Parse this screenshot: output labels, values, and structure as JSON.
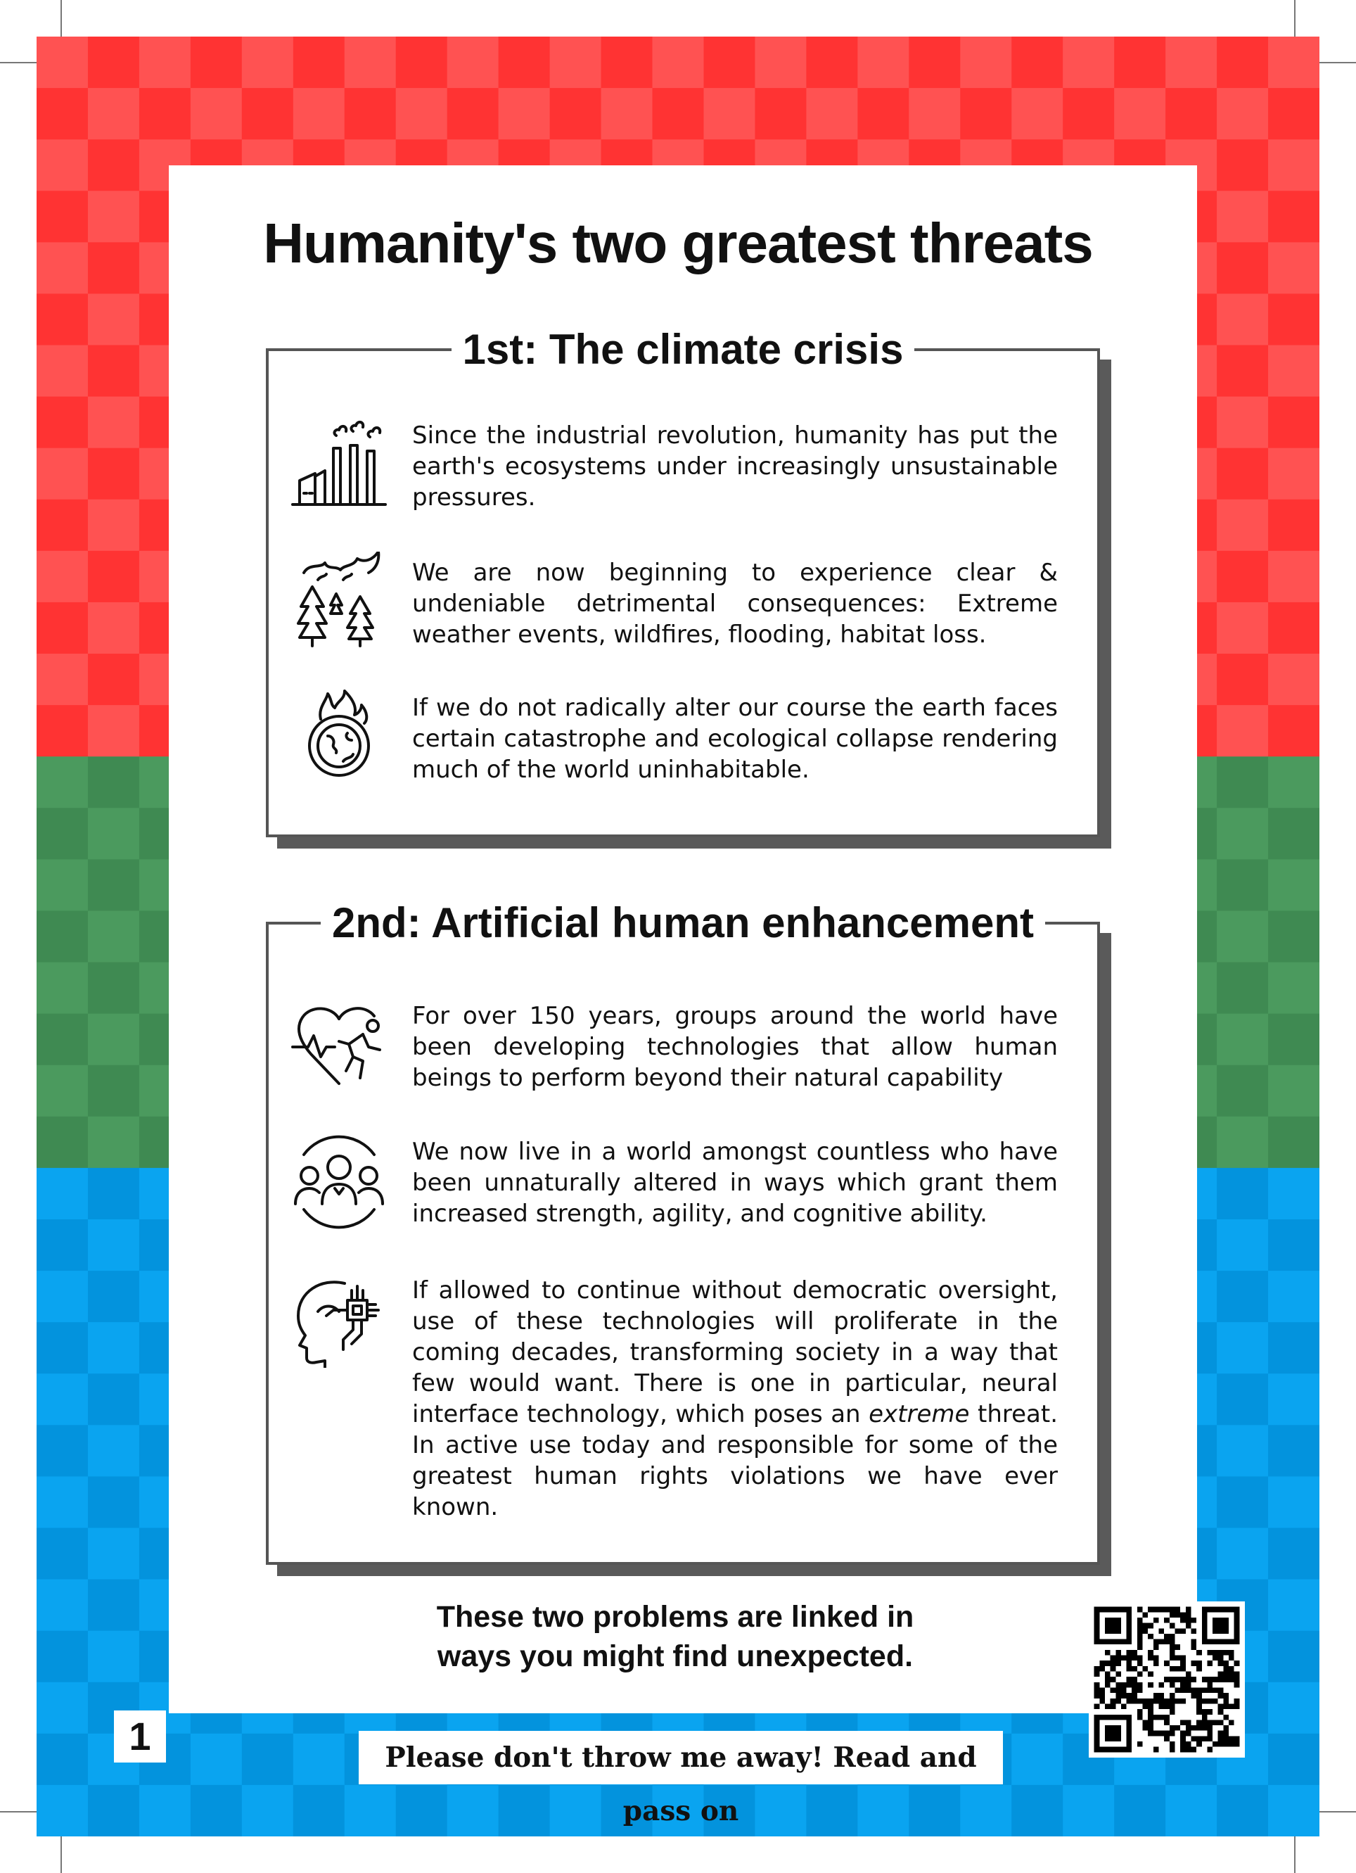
{
  "page": {
    "title": "Humanity's two greatest threats",
    "page_number": "1",
    "closing_line1": "These two problems are linked in",
    "closing_line2": "ways you might find unexpected.",
    "footer": "Please don't throw me away! Read and pass on"
  },
  "colors": {
    "red_light": "#ff5252",
    "red_dark": "#ff3333",
    "green_light": "#4b9a5e",
    "green_dark": "#3f8a52",
    "blue_light": "#0aa4f0",
    "blue_dark": "#0393dd"
  },
  "sections": [
    {
      "heading": "1st: The climate crisis",
      "items": [
        {
          "icon": "factory-pollution-icon",
          "text": "Since the industrial revolution, humanity has put the earth's ecosystems under increasingly unsustainable pressures."
        },
        {
          "icon": "forest-fire-icon",
          "text": "We are now beginning to experience clear & undeniable detrimental consequences: Extreme weather events, wildfires, flooding, habitat loss."
        },
        {
          "icon": "burning-earth-icon",
          "text": "If we do not radically alter our course the earth faces certain catastrophe and ecological collapse rendering much of the world uninhabitable."
        }
      ]
    },
    {
      "heading": "2nd: Artificial human enhancement",
      "items": [
        {
          "icon": "heart-runner-icon",
          "text": "For over 150 years, groups around the world have been developing technologies that allow human beings to perform beyond their natural capability"
        },
        {
          "icon": "people-group-icon",
          "text": "We now live in a world amongst countless who have been unnaturally altered in ways which grant them increased strength, agility, and cognitive ability."
        },
        {
          "icon": "brain-chip-icon",
          "text_before": "If allowed to continue without democratic oversight, use of these technologies will proliferate in the coming decades, transforming society in a way that few would want. There is one in particular, neural interface technology, which poses an ",
          "text_emphasis": "extreme",
          "text_after": " threat. In active use today and responsible for some of the greatest human rights violations we have ever known."
        }
      ]
    }
  ]
}
